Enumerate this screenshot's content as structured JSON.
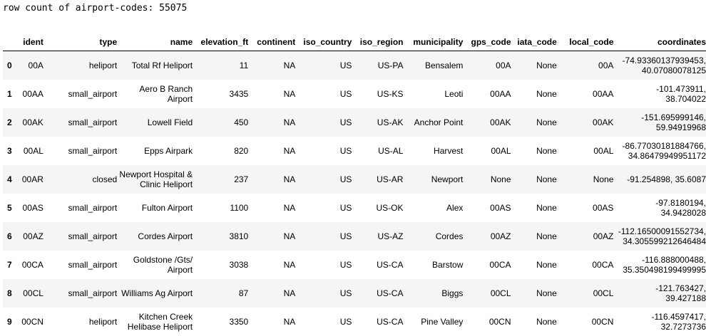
{
  "output": {
    "row_count_text": "row count of airport-codes: 55075"
  },
  "table": {
    "columns": [
      "ident",
      "type",
      "name",
      "elevation_ft",
      "continent",
      "iso_country",
      "iso_region",
      "municipality",
      "gps_code",
      "iata_code",
      "local_code",
      "coordinates"
    ],
    "rows": [
      {
        "index": "0",
        "cells": [
          "00A",
          "heliport",
          "Total Rf Heliport",
          "11",
          "NA",
          "US",
          "US-PA",
          "Bensalem",
          "00A",
          "None",
          "00A",
          "-74.93360137939453, 40.07080078125"
        ]
      },
      {
        "index": "1",
        "cells": [
          "00AA",
          "small_airport",
          "Aero B Ranch Airport",
          "3435",
          "NA",
          "US",
          "US-KS",
          "Leoti",
          "00AA",
          "None",
          "00AA",
          "-101.473911, 38.704022"
        ]
      },
      {
        "index": "2",
        "cells": [
          "00AK",
          "small_airport",
          "Lowell Field",
          "450",
          "NA",
          "US",
          "US-AK",
          "Anchor Point",
          "00AK",
          "None",
          "00AK",
          "-151.695999146, 59.94919968"
        ]
      },
      {
        "index": "3",
        "cells": [
          "00AL",
          "small_airport",
          "Epps Airpark",
          "820",
          "NA",
          "US",
          "US-AL",
          "Harvest",
          "00AL",
          "None",
          "00AL",
          "-86.77030181884766, 34.86479949951172"
        ]
      },
      {
        "index": "4",
        "cells": [
          "00AR",
          "closed",
          "Newport Hospital & Clinic Heliport",
          "237",
          "NA",
          "US",
          "US-AR",
          "Newport",
          "None",
          "None",
          "None",
          "-91.254898, 35.6087"
        ]
      },
      {
        "index": "5",
        "cells": [
          "00AS",
          "small_airport",
          "Fulton Airport",
          "1100",
          "NA",
          "US",
          "US-OK",
          "Alex",
          "00AS",
          "None",
          "00AS",
          "-97.8180194, 34.9428028"
        ]
      },
      {
        "index": "6",
        "cells": [
          "00AZ",
          "small_airport",
          "Cordes Airport",
          "3810",
          "NA",
          "US",
          "US-AZ",
          "Cordes",
          "00AZ",
          "None",
          "00AZ",
          "-112.16500091552734, 34.305599212646484"
        ]
      },
      {
        "index": "7",
        "cells": [
          "00CA",
          "small_airport",
          "Goldstone /Gts/ Airport",
          "3038",
          "NA",
          "US",
          "US-CA",
          "Barstow",
          "00CA",
          "None",
          "00CA",
          "-116.888000488, 35.350498199499995"
        ]
      },
      {
        "index": "8",
        "cells": [
          "00CL",
          "small_airport",
          "Williams Ag Airport",
          "87",
          "NA",
          "US",
          "US-CA",
          "Biggs",
          "00CL",
          "None",
          "00CL",
          "-121.763427, 39.427188"
        ]
      },
      {
        "index": "9",
        "cells": [
          "00CN",
          "heliport",
          "Kitchen Creek Helibase Heliport",
          "3350",
          "NA",
          "US",
          "US-CA",
          "Pine Valley",
          "00CN",
          "None",
          "00CN",
          "-116.4597417, 32.7273736"
        ]
      }
    ]
  }
}
